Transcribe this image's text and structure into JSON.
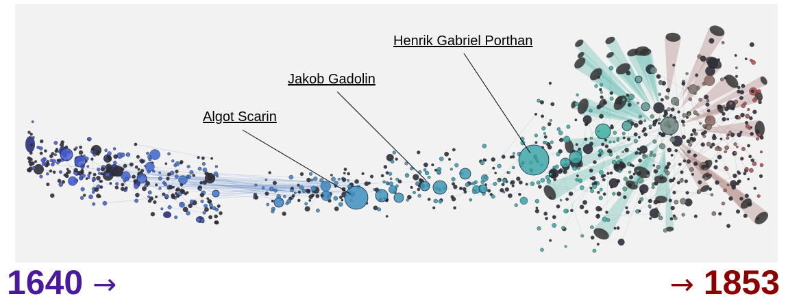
{
  "figure": {
    "annotations": [
      {
        "id": "scarin",
        "label": "Algot Scarin"
      },
      {
        "id": "gadolin",
        "label": "Jakob Gadolin"
      },
      {
        "id": "porthan",
        "label": "Henrik Gabriel Porthan"
      }
    ],
    "timeline": {
      "start_year": "1640",
      "end_year": "1853",
      "start_arrow": "→",
      "end_arrow": "→"
    },
    "colors": {
      "panel_background": "#f2f2f2",
      "early_nodes": "#4a55d6",
      "middle_nodes": "#3f8fbf",
      "late_nodes_teal": "#3fb0a0",
      "late_nodes_red": "#b84a4a",
      "start_year_color": "#4b1a9a",
      "end_year_color": "#8b0000"
    }
  }
}
